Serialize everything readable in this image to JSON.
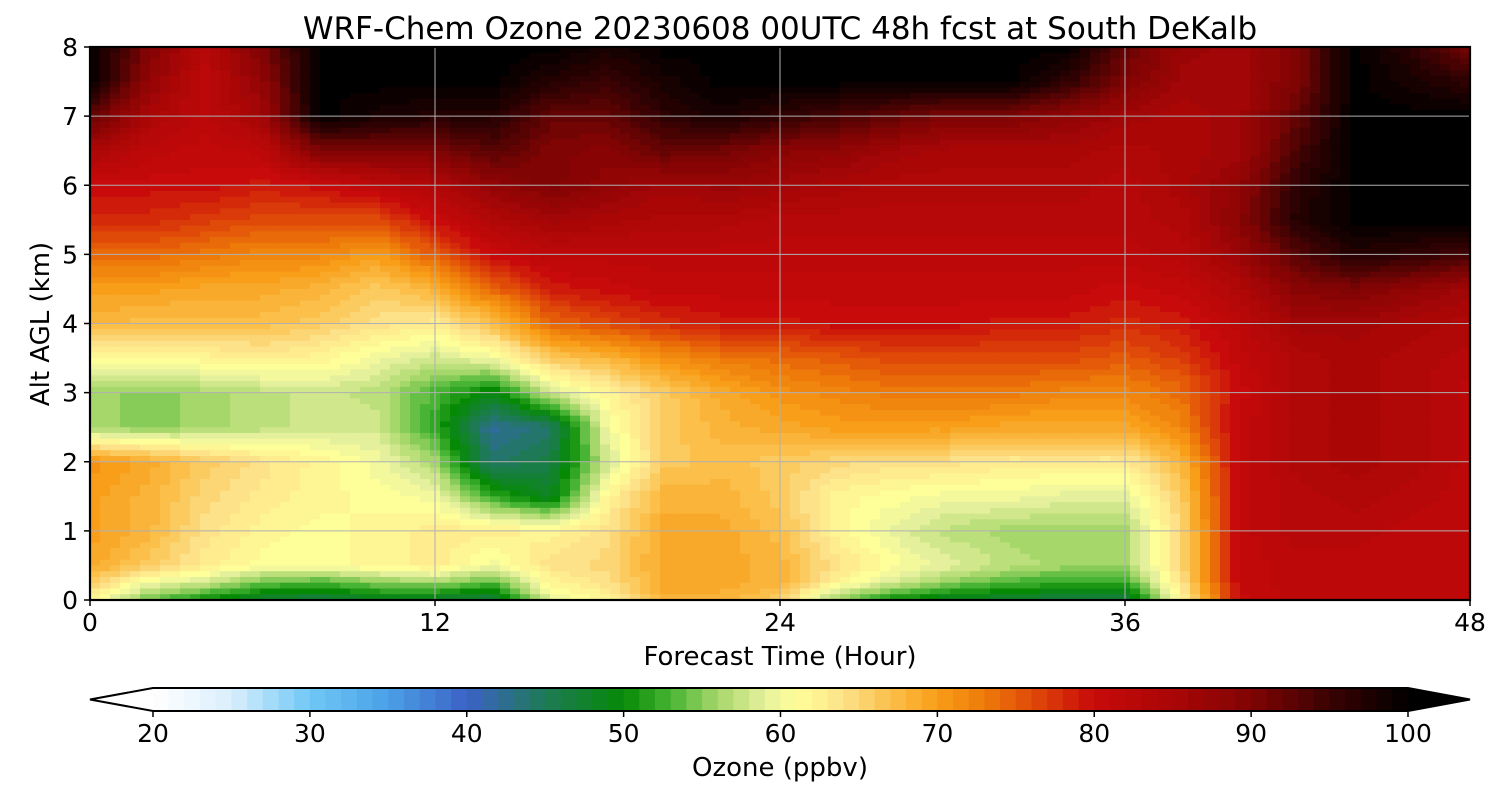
{
  "chart_data": {
    "type": "heatmap",
    "title": "WRF-Chem Ozone  20230608 00UTC 48h fcst at South DeKalb",
    "xlabel": "Forecast Time (Hour)",
    "ylabel": "Alt AGL (km)",
    "xlim": [
      0,
      48
    ],
    "ylim": [
      0,
      8
    ],
    "x_ticks": [
      0,
      12,
      24,
      36,
      48
    ],
    "y_ticks": [
      0,
      1,
      2,
      3,
      4,
      5,
      6,
      7,
      8
    ],
    "grid": true,
    "z_label": "Ozone  (ppbv)",
    "z_range": [
      20,
      100
    ],
    "colorbar_ticks": [
      20,
      30,
      40,
      50,
      60,
      70,
      80,
      90,
      100
    ],
    "colorbar_extend": "both",
    "colorbar_position": "bottom",
    "x": [
      0,
      2,
      4,
      6,
      8,
      10,
      12,
      14,
      16,
      18,
      20,
      22,
      24,
      26,
      28,
      30,
      32,
      34,
      36,
      38,
      40,
      42,
      44,
      46,
      48
    ],
    "y": [
      0,
      0.25,
      0.5,
      1,
      1.5,
      2,
      2.5,
      3,
      3.5,
      4,
      4.5,
      5,
      5.5,
      6,
      6.5,
      7,
      7.5,
      8
    ],
    "z": [
      [
        62,
        54,
        50,
        47,
        46,
        48,
        47,
        46,
        59,
        62,
        68,
        68,
        66,
        55,
        50,
        48,
        47,
        46,
        46,
        62,
        80,
        82,
        82,
        82,
        82
      ],
      [
        66,
        60,
        58,
        54,
        53,
        55,
        56,
        53,
        62,
        64,
        69,
        69,
        68,
        62,
        58,
        55,
        53,
        52,
        52,
        64,
        81,
        82,
        82,
        82,
        82
      ],
      [
        69,
        66,
        63,
        61,
        61,
        62,
        63,
        60,
        64,
        65,
        69,
        69,
        68,
        64,
        61,
        59,
        57,
        56,
        56,
        65,
        81,
        82,
        82,
        82,
        82
      ],
      [
        70,
        68,
        64,
        62,
        61,
        62,
        63,
        63,
        62,
        64,
        69,
        69,
        67,
        62,
        59,
        57,
        56,
        56,
        56,
        65,
        81,
        83,
        83,
        82,
        82
      ],
      [
        70,
        68,
        65,
        63,
        62,
        61,
        60,
        52,
        48,
        62,
        68,
        68,
        66,
        62,
        61,
        60,
        60,
        59,
        59,
        66,
        81,
        83,
        84,
        83,
        82
      ],
      [
        71,
        69,
        66,
        64,
        62,
        60,
        56,
        44,
        46,
        58,
        66,
        67,
        66,
        65,
        64,
        64,
        63,
        63,
        63,
        68,
        81,
        84,
        85,
        84,
        82
      ],
      [
        56,
        55,
        56,
        57,
        58,
        58,
        52,
        42,
        44,
        60,
        66,
        68,
        69,
        70,
        70,
        70,
        69,
        69,
        69,
        72,
        81,
        84,
        85,
        84,
        82
      ],
      [
        56,
        55,
        56,
        57,
        58,
        57,
        53,
        49,
        58,
        62,
        66,
        69,
        71,
        72,
        73,
        73,
        73,
        72,
        72,
        74,
        80,
        84,
        85,
        84,
        82
      ],
      [
        62,
        61,
        62,
        63,
        62,
        60,
        58,
        60,
        66,
        68,
        71,
        73,
        74,
        75,
        76,
        76,
        76,
        76,
        75,
        77,
        81,
        84,
        85,
        84,
        83
      ],
      [
        68,
        67,
        67,
        67,
        66,
        64,
        63,
        67,
        74,
        76,
        78,
        79,
        79,
        80,
        80,
        80,
        79,
        79,
        78,
        79,
        82,
        86,
        86,
        85,
        84
      ],
      [
        70,
        70,
        69,
        69,
        68,
        66,
        68,
        74,
        79,
        80,
        81,
        81,
        81,
        81,
        81,
        81,
        81,
        81,
        80,
        81,
        84,
        89,
        90,
        88,
        86
      ],
      [
        74,
        74,
        73,
        72,
        72,
        70,
        75,
        80,
        82,
        82,
        82,
        82,
        82,
        82,
        82,
        82,
        82,
        82,
        82,
        83,
        87,
        93,
        97,
        96,
        94
      ],
      [
        78,
        78,
        77,
        76,
        76,
        76,
        80,
        84,
        86,
        85,
        84,
        84,
        83,
        83,
        83,
        83,
        83,
        83,
        83,
        84,
        89,
        97,
        100,
        100,
        100
      ],
      [
        80,
        80,
        80,
        79,
        80,
        82,
        84,
        88,
        90,
        88,
        86,
        87,
        86,
        85,
        84,
        84,
        84,
        84,
        83,
        85,
        88,
        96,
        100,
        100,
        100
      ],
      [
        85,
        82,
        81,
        82,
        90,
        90,
        90,
        93,
        90,
        89,
        92,
        91,
        89,
        88,
        86,
        85,
        85,
        85,
        84,
        85,
        86,
        94,
        100,
        100,
        100
      ],
      [
        92,
        85,
        82,
        86,
        100,
        98,
        97,
        97,
        92,
        92,
        96,
        98,
        96,
        94,
        92,
        90,
        90,
        88,
        86,
        85,
        86,
        92,
        100,
        100,
        100
      ],
      [
        100,
        88,
        82,
        88,
        100,
        100,
        100,
        100,
        97,
        95,
        98,
        100,
        100,
        100,
        100,
        100,
        100,
        96,
        90,
        86,
        86,
        90,
        100,
        98,
        96
      ],
      [
        100,
        90,
        83,
        90,
        100,
        100,
        100,
        100,
        100,
        98,
        100,
        100,
        100,
        100,
        100,
        100,
        100,
        100,
        92,
        87,
        86,
        90,
        100,
        96,
        90
      ]
    ],
    "colormap": [
      {
        "v": 20,
        "c": "#ffffff"
      },
      {
        "v": 25,
        "c": "#d9eefc"
      },
      {
        "v": 30,
        "c": "#6fc8f6"
      },
      {
        "v": 35,
        "c": "#4aa0e6"
      },
      {
        "v": 40,
        "c": "#3c62c6"
      },
      {
        "v": 45,
        "c": "#1e7a56"
      },
      {
        "v": 50,
        "c": "#068a06"
      },
      {
        "v": 53,
        "c": "#48b434"
      },
      {
        "v": 56,
        "c": "#a6d76a"
      },
      {
        "v": 59,
        "c": "#e5f09c"
      },
      {
        "v": 61,
        "c": "#ffff9a"
      },
      {
        "v": 64,
        "c": "#fde28a"
      },
      {
        "v": 67,
        "c": "#fbbf4a"
      },
      {
        "v": 70,
        "c": "#f89e18"
      },
      {
        "v": 73,
        "c": "#ee7a0a"
      },
      {
        "v": 76,
        "c": "#e04a08"
      },
      {
        "v": 80,
        "c": "#c80a0a"
      },
      {
        "v": 85,
        "c": "#aa0606"
      },
      {
        "v": 90,
        "c": "#800404"
      },
      {
        "v": 95,
        "c": "#3a0202"
      },
      {
        "v": 100,
        "c": "#000000"
      }
    ]
  }
}
